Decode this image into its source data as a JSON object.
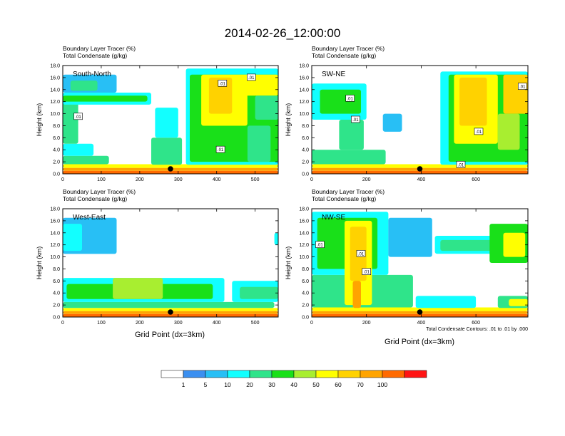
{
  "chart_data": {
    "type": "heatmap",
    "title": "2014-02-26_12:00:00",
    "shared_xlabel": "Grid Point (dx=3km)",
    "contour_note": "Total Condensate Contours: .01 to .01 by .000",
    "colorbar": {
      "levels": [
        "1",
        "5",
        "10",
        "20",
        "30",
        "40",
        "50",
        "60",
        "70",
        "100"
      ],
      "colors": [
        "#ffffff",
        "#3b8ff0",
        "#28bff5",
        "#12ffff",
        "#2fe48a",
        "#19e019",
        "#a8ee30",
        "#ffff00",
        "#ffd200",
        "#ffa400",
        "#ff6a00",
        "#ff1414"
      ]
    },
    "panels": [
      {
        "label": "South-North",
        "header1": "Boundary Layer Tracer   (%)",
        "header2": "Total Condensate   (g/kg)",
        "ylabel": "Height (km)",
        "ylim": [
          0,
          18
        ],
        "yticks": [
          "0.0",
          "2.0",
          "4.0",
          "6.0",
          "8.0",
          "10.0",
          "12.0",
          "14.0",
          "16.0",
          "18.0"
        ],
        "xlim": [
          0,
          560
        ],
        "xticks": [
          0,
          100,
          200,
          300,
          400,
          500
        ],
        "xtick_labels": [
          "0",
          "100",
          "200",
          "300",
          "400",
          "500"
        ],
        "marker_x": 280,
        "contour_labels": [
          {
            "x": 40,
            "z": 9.5,
            "text": ".01"
          },
          {
            "x": 415,
            "z": 15.0,
            "text": ".01"
          },
          {
            "x": 490,
            "z": 16.0,
            "text": ".01"
          },
          {
            "x": 410,
            "z": 4.0,
            "text": ".01"
          }
        ],
        "cells": [
          {
            "x": 0,
            "x2": 560,
            "z": 0,
            "z2": 0.5,
            "v": 100
          },
          {
            "x": 0,
            "x2": 560,
            "z": 0.5,
            "z2": 1.0,
            "v": 70
          },
          {
            "x": 0,
            "x2": 560,
            "z": 1.0,
            "z2": 1.6,
            "v": 50
          },
          {
            "x": 0,
            "x2": 120,
            "z": 1.6,
            "z2": 3.0,
            "v": 20
          },
          {
            "x": 0,
            "x2": 80,
            "z": 3.0,
            "z2": 5.0,
            "v": 10
          },
          {
            "x": 0,
            "x2": 40,
            "z": 5.0,
            "z2": 12.0,
            "v": 20
          },
          {
            "x": 0,
            "x2": 230,
            "z": 11.5,
            "z2": 13.5,
            "v": 10
          },
          {
            "x": 0,
            "x2": 220,
            "z": 12.0,
            "z2": 13.0,
            "v": 30
          },
          {
            "x": 0,
            "x2": 140,
            "z": 13.5,
            "z2": 16.5,
            "v": 5
          },
          {
            "x": 20,
            "x2": 90,
            "z": 13.8,
            "z2": 15.5,
            "v": 20
          },
          {
            "x": 230,
            "x2": 310,
            "z": 1.5,
            "z2": 6.0,
            "v": 20
          },
          {
            "x": 240,
            "x2": 300,
            "z": 6.0,
            "z2": 11.0,
            "v": 10
          },
          {
            "x": 320,
            "x2": 560,
            "z": 1.5,
            "z2": 17.5,
            "v": 10
          },
          {
            "x": 330,
            "x2": 560,
            "z": 2.0,
            "z2": 16.5,
            "v": 30
          },
          {
            "x": 360,
            "x2": 480,
            "z": 8.0,
            "z2": 16.5,
            "v": 50
          },
          {
            "x": 380,
            "x2": 440,
            "z": 10.0,
            "z2": 16.0,
            "v": 60
          },
          {
            "x": 470,
            "x2": 560,
            "z": 13.0,
            "z2": 16.5,
            "v": 50
          },
          {
            "x": 500,
            "x2": 560,
            "z": 9.0,
            "z2": 13.0,
            "v": 20
          },
          {
            "x": 480,
            "x2": 540,
            "z": 2.0,
            "z2": 8.0,
            "v": 20
          }
        ]
      },
      {
        "label": "SW-NE",
        "header1": "Boundary Layer Tracer   (%)",
        "header2": "Total Condensate   (g/kg)",
        "ylabel": "Height (km)",
        "ylim": [
          0,
          18
        ],
        "yticks": [
          "0.0",
          "2.0",
          "4.0",
          "6.0",
          "8.0",
          "10.0",
          "12.0",
          "14.0",
          "16.0",
          "18.0"
        ],
        "xlim": [
          0,
          790
        ],
        "xticks": [
          0,
          200,
          400,
          600
        ],
        "xtick_labels": [
          "0",
          "200",
          "400",
          "600"
        ],
        "marker_x": 395,
        "contour_labels": [
          {
            "x": 140,
            "z": 12.5,
            "text": ".01"
          },
          {
            "x": 160,
            "z": 9.0,
            "text": ".01"
          },
          {
            "x": 610,
            "z": 7.0,
            "text": ".01"
          },
          {
            "x": 545,
            "z": 1.5,
            "text": ".01"
          },
          {
            "x": 770,
            "z": 14.5,
            "text": ".01"
          }
        ],
        "cells": [
          {
            "x": 0,
            "x2": 790,
            "z": 0,
            "z2": 0.5,
            "v": 100
          },
          {
            "x": 0,
            "x2": 790,
            "z": 0.5,
            "z2": 1.0,
            "v": 70
          },
          {
            "x": 0,
            "x2": 790,
            "z": 1.0,
            "z2": 1.6,
            "v": 50
          },
          {
            "x": 0,
            "x2": 270,
            "z": 1.6,
            "z2": 4.0,
            "v": 20
          },
          {
            "x": 0,
            "x2": 200,
            "z": 9.0,
            "z2": 15.0,
            "v": 10
          },
          {
            "x": 30,
            "x2": 180,
            "z": 10.0,
            "z2": 14.0,
            "v": 30
          },
          {
            "x": 100,
            "x2": 190,
            "z": 4.0,
            "z2": 9.0,
            "v": 20
          },
          {
            "x": 260,
            "x2": 330,
            "z": 7.0,
            "z2": 10.0,
            "v": 5
          },
          {
            "x": 470,
            "x2": 790,
            "z": 1.5,
            "z2": 17.0,
            "v": 10
          },
          {
            "x": 500,
            "x2": 790,
            "z": 2.0,
            "z2": 16.5,
            "v": 30
          },
          {
            "x": 520,
            "x2": 680,
            "z": 5.0,
            "z2": 16.5,
            "v": 50
          },
          {
            "x": 540,
            "x2": 640,
            "z": 8.0,
            "z2": 16.0,
            "v": 60
          },
          {
            "x": 700,
            "x2": 790,
            "z": 10.0,
            "z2": 16.5,
            "v": 60
          },
          {
            "x": 680,
            "x2": 760,
            "z": 4.0,
            "z2": 10.0,
            "v": 40
          }
        ]
      },
      {
        "label": "West-East",
        "header1": "Boundary Layer Tracer   (%)",
        "header2": "Total Condensate   (g/kg)",
        "ylabel": "Height (km)",
        "ylim": [
          0,
          18
        ],
        "yticks": [
          "0.0",
          "2.0",
          "4.0",
          "6.0",
          "8.0",
          "10.0",
          "12.0",
          "14.0",
          "16.0",
          "18.0"
        ],
        "xlim": [
          0,
          560
        ],
        "xticks": [
          0,
          100,
          200,
          300,
          400,
          500
        ],
        "xtick_labels": [
          "0",
          "100",
          "200",
          "300",
          "400",
          "500"
        ],
        "marker_x": 280,
        "contour_labels": [],
        "cells": [
          {
            "x": 0,
            "x2": 560,
            "z": 0,
            "z2": 0.5,
            "v": 100
          },
          {
            "x": 0,
            "x2": 560,
            "z": 0.5,
            "z2": 1.0,
            "v": 70
          },
          {
            "x": 0,
            "x2": 560,
            "z": 1.0,
            "z2": 1.5,
            "v": 50
          },
          {
            "x": 0,
            "x2": 550,
            "z": 1.5,
            "z2": 2.5,
            "v": 20
          },
          {
            "x": 0,
            "x2": 420,
            "z": 2.5,
            "z2": 6.5,
            "v": 10
          },
          {
            "x": 10,
            "x2": 390,
            "z": 3.0,
            "z2": 5.5,
            "v": 30
          },
          {
            "x": 130,
            "x2": 260,
            "z": 3.0,
            "z2": 6.5,
            "v": 40
          },
          {
            "x": 440,
            "x2": 560,
            "z": 2.5,
            "z2": 6.0,
            "v": 10
          },
          {
            "x": 460,
            "x2": 560,
            "z": 3.0,
            "z2": 5.0,
            "v": 20
          },
          {
            "x": 0,
            "x2": 140,
            "z": 10.5,
            "z2": 16.5,
            "v": 5
          },
          {
            "x": 0,
            "x2": 50,
            "z": 11.0,
            "z2": 15.5,
            "v": 10
          },
          {
            "x": 550,
            "x2": 560,
            "z": 12.0,
            "z2": 14.0,
            "v": 10
          }
        ]
      },
      {
        "label": "NW-SE",
        "header1": "Boundary Layer Tracer   (%)",
        "header2": "Total Condensate   (g/kg)",
        "ylabel": "Height (km)",
        "ylim": [
          0,
          18
        ],
        "yticks": [
          "0.0",
          "2.0",
          "4.0",
          "6.0",
          "8.0",
          "10.0",
          "12.0",
          "14.0",
          "16.0",
          "18.0"
        ],
        "xlim": [
          0,
          790
        ],
        "xticks": [
          0,
          200,
          400,
          600
        ],
        "xtick_labels": [
          "0",
          "200",
          "400",
          "600"
        ],
        "marker_x": 395,
        "contour_labels": [
          {
            "x": 30,
            "z": 12.0,
            "text": ".01"
          },
          {
            "x": 180,
            "z": 10.5,
            "text": ".01"
          },
          {
            "x": 200,
            "z": 7.5,
            "text": ".01"
          }
        ],
        "cells": [
          {
            "x": 0,
            "x2": 790,
            "z": 0,
            "z2": 0.5,
            "v": 100
          },
          {
            "x": 0,
            "x2": 790,
            "z": 0.5,
            "z2": 1.0,
            "v": 70
          },
          {
            "x": 0,
            "x2": 790,
            "z": 1.0,
            "z2": 1.6,
            "v": 50
          },
          {
            "x": 0,
            "x2": 370,
            "z": 1.6,
            "z2": 7.0,
            "v": 20
          },
          {
            "x": 0,
            "x2": 280,
            "z": 7.0,
            "z2": 17.5,
            "v": 10
          },
          {
            "x": 20,
            "x2": 240,
            "z": 8.0,
            "z2": 16.5,
            "v": 30
          },
          {
            "x": 120,
            "x2": 220,
            "z": 2.0,
            "z2": 16.0,
            "v": 50
          },
          {
            "x": 140,
            "x2": 200,
            "z": 6.0,
            "z2": 15.0,
            "v": 60
          },
          {
            "x": 150,
            "x2": 180,
            "z": 1.5,
            "z2": 6.0,
            "v": 70
          },
          {
            "x": 280,
            "x2": 440,
            "z": 10.0,
            "z2": 16.5,
            "v": 5
          },
          {
            "x": 450,
            "x2": 790,
            "z": 10.5,
            "z2": 13.5,
            "v": 10
          },
          {
            "x": 470,
            "x2": 770,
            "z": 11.0,
            "z2": 12.8,
            "v": 20
          },
          {
            "x": 650,
            "x2": 790,
            "z": 9.0,
            "z2": 15.5,
            "v": 30
          },
          {
            "x": 700,
            "x2": 780,
            "z": 10.0,
            "z2": 14.0,
            "v": 50
          },
          {
            "x": 680,
            "x2": 790,
            "z": 1.5,
            "z2": 3.5,
            "v": 20
          },
          {
            "x": 720,
            "x2": 790,
            "z": 1.8,
            "z2": 3.0,
            "v": 50
          },
          {
            "x": 380,
            "x2": 600,
            "z": 1.5,
            "z2": 3.5,
            "v": 10
          }
        ]
      }
    ]
  }
}
